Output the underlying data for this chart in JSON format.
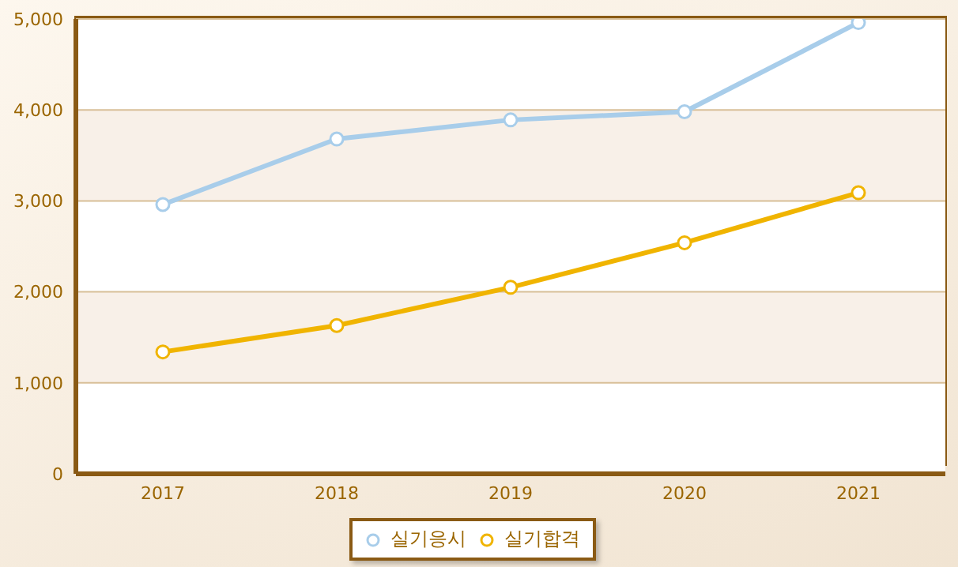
{
  "chart_data": {
    "type": "line",
    "categories": [
      "2017",
      "2018",
      "2019",
      "2020",
      "2021"
    ],
    "series": [
      {
        "name": "실기응시",
        "color": "#a8cdea",
        "values": [
          2960,
          3680,
          3890,
          3980,
          4960
        ]
      },
      {
        "name": "실기합격",
        "color": "#f0b400",
        "values": [
          1340,
          1630,
          2050,
          2540,
          3090
        ]
      }
    ],
    "ylim": [
      0,
      5000
    ],
    "yticks": [
      0,
      {
        "value": 1000,
        "label": "1,000"
      },
      {
        "value": 2000,
        "label": "2,000"
      },
      {
        "value": 3000,
        "label": "3,000"
      },
      {
        "value": 4000,
        "label": "4,000"
      },
      {
        "value": 5000,
        "label": "5,000"
      }
    ],
    "grid": "y",
    "legend": "bottom",
    "marker": "circle"
  }
}
